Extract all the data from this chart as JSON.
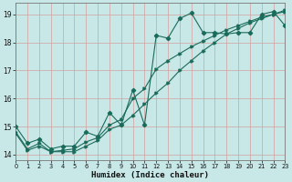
{
  "xlabel": "Humidex (Indice chaleur)",
  "bg_color": "#c8e8e8",
  "grid_color": "#d4a0a0",
  "line_color": "#1a6b5a",
  "xlim": [
    0,
    23
  ],
  "ylim": [
    13.8,
    19.4
  ],
  "x_ticks": [
    0,
    1,
    2,
    3,
    4,
    5,
    6,
    7,
    8,
    9,
    10,
    11,
    12,
    13,
    14,
    15,
    16,
    17,
    18,
    19,
    20,
    21,
    22,
    23
  ],
  "y_ticks": [
    14,
    15,
    16,
    17,
    18,
    19
  ],
  "line1_x": [
    0,
    1,
    2,
    3,
    4,
    5,
    6,
    7,
    8,
    9,
    10,
    11,
    12,
    13,
    14,
    15,
    16,
    17,
    18,
    19,
    20,
    21,
    22,
    23
  ],
  "line1_y": [
    15.0,
    14.4,
    14.55,
    14.2,
    14.3,
    14.3,
    14.8,
    14.65,
    15.5,
    15.05,
    16.3,
    15.05,
    18.25,
    18.15,
    18.85,
    19.05,
    18.35,
    18.35,
    18.3,
    18.35,
    18.35,
    19.0,
    19.1,
    18.6
  ],
  "line2_x": [
    0,
    1,
    2,
    3,
    4,
    5,
    6,
    7,
    8,
    9,
    10,
    11,
    12,
    13,
    14,
    15,
    16,
    17,
    18,
    19,
    20,
    21,
    22,
    23
  ],
  "line2_y": [
    14.8,
    14.2,
    14.4,
    14.1,
    14.15,
    14.2,
    14.45,
    14.6,
    15.05,
    15.25,
    16.0,
    16.35,
    17.05,
    17.35,
    17.6,
    17.85,
    18.05,
    18.25,
    18.45,
    18.6,
    18.75,
    18.9,
    19.0,
    19.15
  ],
  "line3_x": [
    0,
    1,
    2,
    3,
    4,
    5,
    6,
    7,
    8,
    9,
    10,
    11,
    12,
    13,
    14,
    15,
    16,
    17,
    18,
    19,
    20,
    21,
    22,
    23
  ],
  "line3_y": [
    14.75,
    14.15,
    14.3,
    14.1,
    14.1,
    14.1,
    14.3,
    14.5,
    14.9,
    15.05,
    15.4,
    15.8,
    16.2,
    16.55,
    17.0,
    17.35,
    17.7,
    18.0,
    18.3,
    18.5,
    18.7,
    18.85,
    19.0,
    19.1
  ]
}
